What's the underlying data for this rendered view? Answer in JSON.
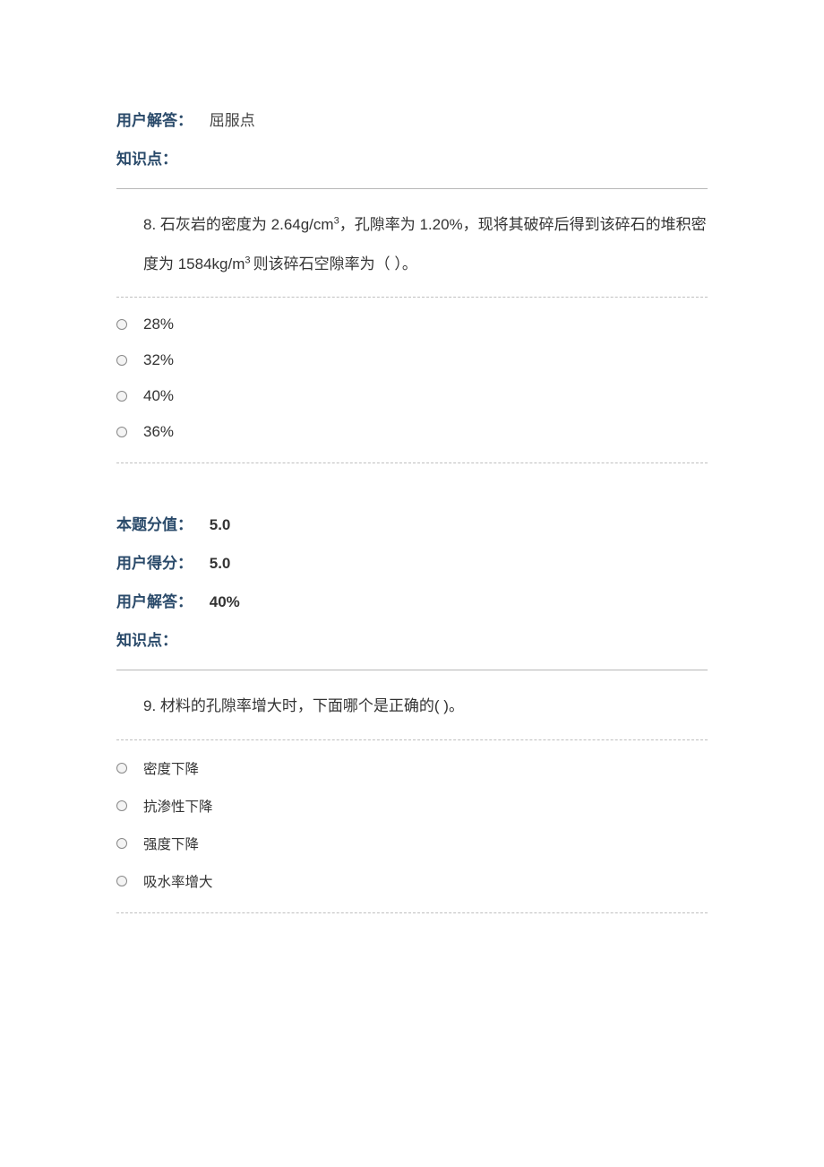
{
  "colors": {
    "label_color": "#2a4a6a",
    "text_color": "#333333",
    "hr_color": "#b8b8b8",
    "dashed_color": "#bfbfbf",
    "background": "#ffffff",
    "radio_border": "#888888",
    "radio_fill": "#f4f4f4"
  },
  "typography": {
    "body_fontsize_pt": 13,
    "meta_fontsize_pt": 13,
    "option_small_fontsize_pt": 12,
    "line_height_stem": 2.6
  },
  "top_meta": {
    "user_answer_label": "用户解答：",
    "user_answer_value": "屈服点",
    "knowledge_label": "知识点："
  },
  "q8": {
    "number": "8.",
    "stem_parts": {
      "p1": "石灰岩的密度为 2.64g/cm",
      "sup1": "3",
      "p2": "，孔隙率为 1.20%，现将其破碎后得到该碎石的堆积密度为 1584kg/m",
      "sup2": "3 ",
      "p3": "则该碎石空隙率为（  ）。"
    },
    "options": [
      "28%",
      "32%",
      "40%",
      "36%"
    ],
    "meta": {
      "score_label": "本题分值：",
      "score_value": "5.0",
      "user_score_label": "用户得分：",
      "user_score_value": "5.0",
      "user_answer_label": "用户解答：",
      "user_answer_value": "40%",
      "knowledge_label": "知识点："
    }
  },
  "q9": {
    "number": "9.",
    "stem": "材料的孔隙率增大时，下面哪个是正确的(  )。",
    "options": [
      "密度下降",
      "抗渗性下降",
      "强度下降",
      "吸水率增大"
    ]
  }
}
